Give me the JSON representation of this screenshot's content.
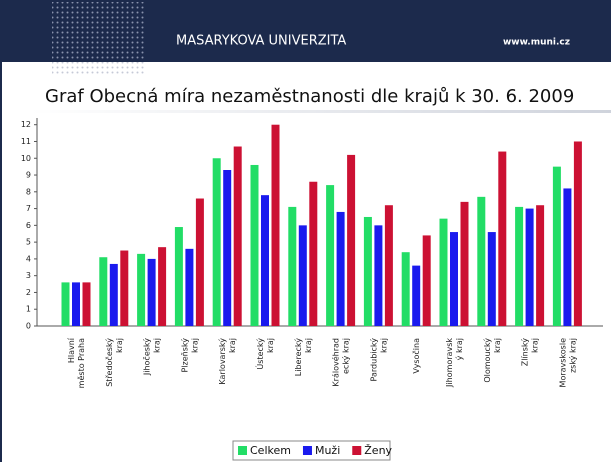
{
  "header": {
    "university": "MASARYKOVA UNIVERZITA",
    "url": "www.muni.cz"
  },
  "chart_data": {
    "type": "bar",
    "title": "Graf Obecná míra nezaměstnanosti dle krajů k 30. 6. 2009",
    "categories": [
      "Hlavní město Praha",
      "Středočeský kraj",
      "Jihočeský kraj",
      "Plzeňský kraj",
      "Karlovarský kraj",
      "Ústecký kraj",
      "Liberecký kraj",
      "Královéhradecký kraj",
      "Pardubický kraj",
      "Vysočina",
      "Jihomoravský kraj",
      "Olomoucký kraj",
      "Zlínský kraj",
      "Moravskoslezský kraj"
    ],
    "series": [
      {
        "name": "Celkem",
        "color": "#22dd66",
        "values": [
          2.6,
          4.1,
          4.3,
          5.9,
          10.0,
          9.6,
          7.1,
          8.4,
          6.5,
          4.4,
          6.4,
          7.7,
          7.1,
          9.5
        ]
      },
      {
        "name": "Muži",
        "color": "#1a1aee",
        "values": [
          2.6,
          3.7,
          4.0,
          4.6,
          9.3,
          7.8,
          6.0,
          6.8,
          6.0,
          3.6,
          5.6,
          5.6,
          7.0,
          8.2
        ]
      },
      {
        "name": "Ženy",
        "color": "#cc1133",
        "values": [
          2.6,
          4.5,
          4.7,
          7.6,
          10.7,
          12.0,
          8.6,
          10.2,
          7.2,
          5.4,
          7.4,
          10.4,
          7.2,
          11.0
        ]
      }
    ],
    "ylim": [
      0,
      12.4
    ],
    "yticks": [
      0,
      1,
      2,
      3,
      4,
      5,
      6,
      7,
      8,
      9,
      10,
      11,
      12
    ],
    "legend": "bottom"
  }
}
